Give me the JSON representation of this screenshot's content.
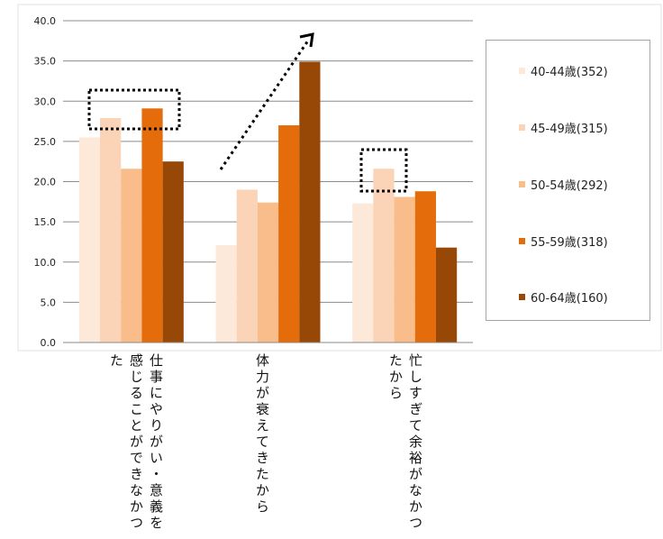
{
  "chart_data": {
    "type": "bar",
    "categories": [
      "仕事にやりがい・意義を感じることができなかつた",
      "体力が衰えてきたから",
      "忙しすぎて余裕がなかつたから"
    ],
    "series": [
      {
        "name": "40-44歳(352)",
        "values": [
          25.5,
          12.1,
          17.3
        ],
        "color": "#fde9d9"
      },
      {
        "name": "45-49歳(315)",
        "values": [
          27.9,
          19.0,
          21.6
        ],
        "color": "#fbd3b6"
      },
      {
        "name": "50-54歳(292)",
        "values": [
          21.6,
          17.4,
          18.1
        ],
        "color": "#f9bd8b"
      },
      {
        "name": "55-59歳(318)",
        "values": [
          29.1,
          27.0,
          18.8
        ],
        "color": "#e46c0a"
      },
      {
        "name": "60-64歳(160)",
        "values": [
          22.5,
          34.9,
          11.8
        ],
        "color": "#974706"
      }
    ],
    "yticks": [
      "0.0",
      "5.0",
      "10.0",
      "15.0",
      "20.0",
      "25.0",
      "30.0",
      "35.0",
      "40.0"
    ],
    "ylim": [
      0,
      40
    ],
    "grid": true,
    "legend_position": "right"
  }
}
